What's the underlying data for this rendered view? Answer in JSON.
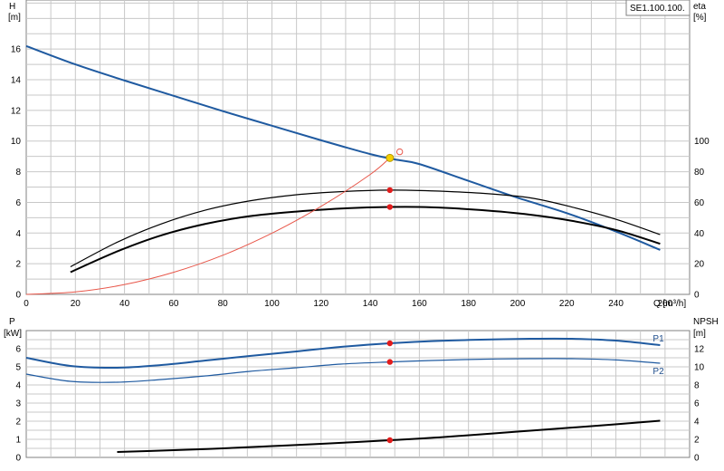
{
  "model_label": "SE1.100.100.",
  "colors": {
    "head": "#1f5aa0",
    "power": "#1f5aa0",
    "efficiency": "#000000",
    "npsh": "#000000",
    "system": "#e8574a",
    "op_point": "#e21b1b",
    "duty_point": "#f5d000",
    "grid": "#c8c8c8"
  },
  "chart_data": [
    {
      "type": "line",
      "panel": "upper",
      "xlabel": "Q [m³/h]",
      "xlim": [
        0,
        270
      ],
      "x_ticks": [
        0,
        20,
        40,
        60,
        80,
        100,
        120,
        140,
        160,
        180,
        200,
        220,
        240,
        260
      ],
      "ylabel": "H",
      "ylabel_unit": "[m]",
      "ylim": [
        0,
        19.2
      ],
      "y_ticks": [
        0,
        2,
        4,
        6,
        8,
        10,
        12,
        14,
        16
      ],
      "y2label": "eta",
      "y2label_unit": "[%]",
      "y2lim": [
        0,
        192
      ],
      "y2_ticks": [
        0,
        20,
        40,
        60,
        80,
        100
      ],
      "grid": true,
      "series": [
        {
          "key": "head",
          "axis": "left",
          "x": [
            0,
            20,
            40,
            60,
            80,
            100,
            120,
            140,
            150,
            160,
            180,
            200,
            220,
            240,
            258
          ],
          "y": [
            16.2,
            15.0,
            13.95,
            12.95,
            11.95,
            11.0,
            10.05,
            9.15,
            8.8,
            8.5,
            7.4,
            6.3,
            5.3,
            4.1,
            2.9
          ]
        },
        {
          "key": "efficiency_1",
          "axis": "right",
          "x": [
            18,
            37,
            55,
            73,
            91,
            110,
            128,
            148,
            165,
            185,
            205,
            222,
            240,
            258
          ],
          "y": [
            18,
            34,
            46,
            55,
            61,
            65,
            67,
            68,
            67.5,
            66,
            63,
            57,
            49,
            39
          ]
        },
        {
          "key": "efficiency_2",
          "axis": "right",
          "x": [
            18,
            37,
            55,
            73,
            91,
            110,
            128,
            148,
            165,
            185,
            205,
            222,
            240,
            258
          ],
          "y": [
            14.5,
            28,
            38.5,
            46,
            51,
            54,
            56,
            57,
            56.8,
            55,
            52,
            48,
            42,
            33
          ]
        },
        {
          "key": "system",
          "axis": "left",
          "x": [
            0,
            20,
            40,
            60,
            80,
            100,
            120,
            140,
            148
          ],
          "y": [
            0,
            0.16,
            0.64,
            1.44,
            2.55,
            3.99,
            5.74,
            7.82,
            8.9
          ]
        }
      ],
      "points": [
        {
          "key": "duty",
          "axis": "left",
          "x": 148,
          "y": 8.9
        },
        {
          "key": "duty_marker_open",
          "axis": "left",
          "x": 152,
          "y": 9.3
        },
        {
          "key": "eta1_op",
          "axis": "right",
          "x": 148,
          "y": 68
        },
        {
          "key": "eta2_op",
          "axis": "right",
          "x": 148,
          "y": 57
        }
      ]
    },
    {
      "type": "line",
      "panel": "lower",
      "xlim": [
        0,
        270
      ],
      "ylabel": "P",
      "ylabel_unit": "[kW]",
      "ylim": [
        0,
        7.0
      ],
      "y_ticks": [
        0,
        1,
        2,
        3,
        4,
        5,
        6
      ],
      "y2label": "NPSH",
      "y2label_unit": "[m]",
      "y2lim": [
        0,
        14.0
      ],
      "y2_ticks": [
        0,
        2,
        4,
        6,
        8,
        10,
        12
      ],
      "grid": true,
      "series": [
        {
          "key": "P1",
          "name": "P1",
          "axis": "left",
          "x": [
            0,
            18,
            37,
            55,
            73,
            91,
            110,
            128,
            148,
            165,
            185,
            205,
            222,
            240,
            258
          ],
          "y": [
            5.5,
            5.05,
            4.95,
            5.1,
            5.35,
            5.6,
            5.85,
            6.1,
            6.3,
            6.42,
            6.5,
            6.55,
            6.55,
            6.45,
            6.2
          ]
        },
        {
          "key": "P2",
          "name": "P2",
          "axis": "left",
          "x": [
            0,
            18,
            37,
            55,
            73,
            91,
            110,
            128,
            148,
            165,
            185,
            205,
            222,
            240,
            258
          ],
          "y": [
            4.6,
            4.2,
            4.15,
            4.3,
            4.5,
            4.75,
            4.95,
            5.15,
            5.27,
            5.35,
            5.42,
            5.45,
            5.45,
            5.38,
            5.2
          ]
        },
        {
          "key": "npsh",
          "axis": "right",
          "x": [
            37,
            60,
            80,
            100,
            120,
            148,
            170,
            200,
            230,
            258
          ],
          "y": [
            0.6,
            0.8,
            1.0,
            1.25,
            1.5,
            1.9,
            2.25,
            2.85,
            3.45,
            4.05
          ]
        }
      ],
      "points": [
        {
          "key": "P1_op",
          "axis": "left",
          "x": 148,
          "y": 6.3
        },
        {
          "key": "P2_op",
          "axis": "left",
          "x": 148,
          "y": 5.27
        },
        {
          "key": "npsh_op",
          "axis": "right",
          "x": 148,
          "y": 1.9
        }
      ]
    }
  ]
}
